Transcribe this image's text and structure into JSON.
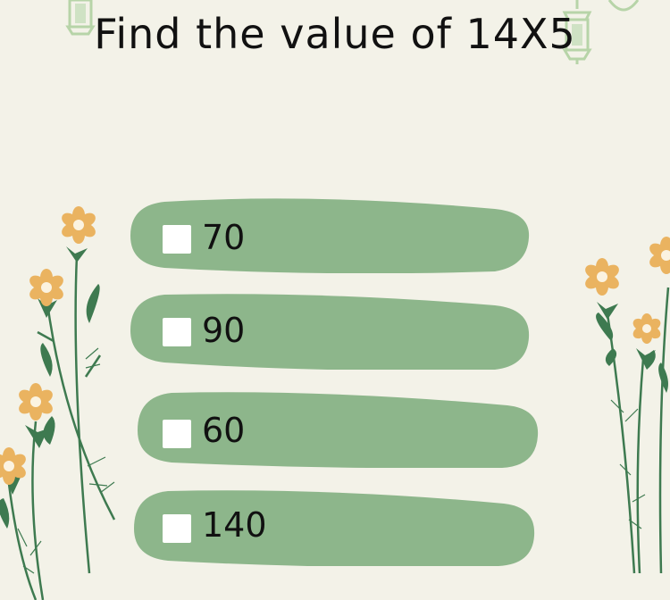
{
  "question": {
    "text": "Find the value of 14X5"
  },
  "options": [
    {
      "label": "70",
      "checked": false
    },
    {
      "label": "90",
      "checked": false
    },
    {
      "label": "60",
      "checked": false
    },
    {
      "label": "140",
      "checked": false
    }
  ],
  "colors": {
    "background": "#f3f2e8",
    "option_fill": "#8db68b",
    "flower_petal": "#eab360",
    "stem_leaf": "#3e7a50",
    "lantern": "#b7d4a8"
  },
  "icons": [
    "lantern-icon",
    "flower-icon",
    "leaf-icon"
  ]
}
